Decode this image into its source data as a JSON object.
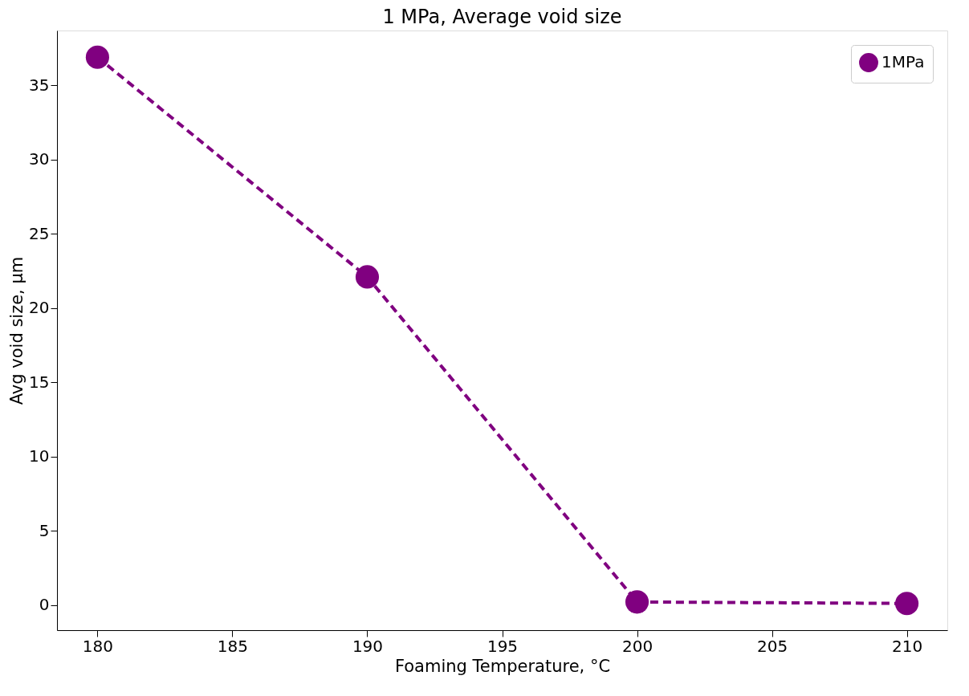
{
  "chart_data": {
    "type": "line",
    "title": "1 MPa, Average void size",
    "xlabel": "Foaming Temperature, °C",
    "ylabel": "Avg void size, µm",
    "x": [
      180,
      190,
      200,
      210
    ],
    "series": [
      {
        "name": "1MPa",
        "color": "#800080",
        "values": [
          36.9,
          22.1,
          0.2,
          0.1
        ]
      }
    ],
    "xlim": [
      178.5,
      211.5
    ],
    "xticks": [
      180,
      185,
      190,
      195,
      200,
      205,
      210
    ],
    "ylim": [
      -1.7,
      38.7
    ],
    "yticks": [
      0,
      5,
      10,
      15,
      20,
      25,
      30,
      35
    ],
    "grid": false,
    "legend": "top right",
    "marker": "circle",
    "line_style": "dashed"
  }
}
